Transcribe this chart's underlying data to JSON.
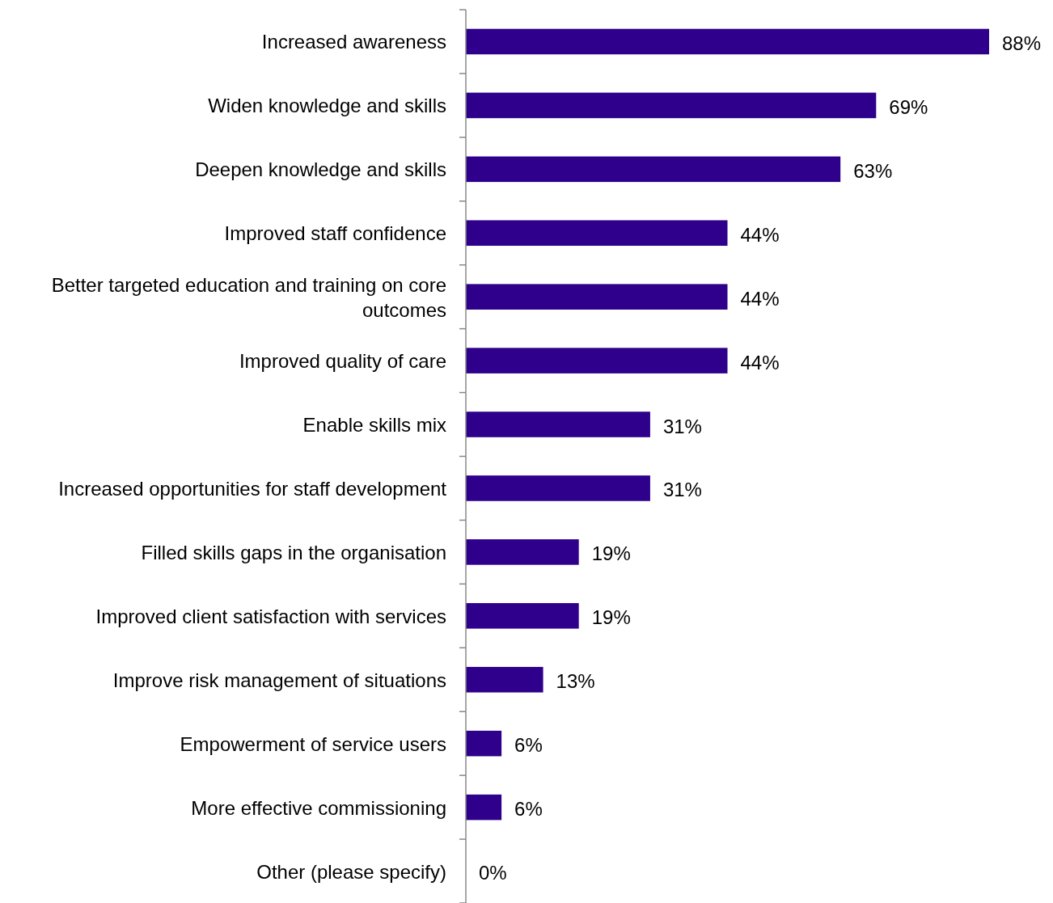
{
  "chart_data": {
    "type": "bar",
    "orientation": "horizontal",
    "data_labels": true,
    "color": "#2e008b",
    "categories": [
      "Increased awareness",
      "Widen knowledge and skills",
      "Deepen knowledge and skills",
      "Improved staff confidence",
      "Better targeted education and training on core outcomes",
      "Improved quality of care",
      "Enable skills mix",
      "Increased opportunities for staff development",
      "Filled skills gaps in the organisation",
      "Improved client satisfaction with services",
      "Improve risk management of situations",
      "Empowerment of service users",
      "More effective commissioning",
      "Other (please specify)"
    ],
    "values": [
      88,
      69,
      63,
      44,
      44,
      44,
      31,
      31,
      19,
      19,
      13,
      6,
      6,
      0
    ],
    "value_labels": [
      "88%",
      "69%",
      "63%",
      "44%",
      "44%",
      "44%",
      "31%",
      "31%",
      "19%",
      "19%",
      "13%",
      "6%",
      "6%",
      "0%"
    ]
  }
}
